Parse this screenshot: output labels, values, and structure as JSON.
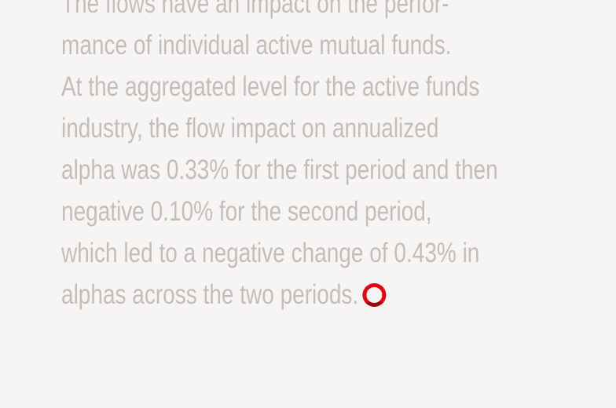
{
  "article": {
    "lines": [
      "The flows have an impact on the perfor-",
      "mance of individual active mutual funds.",
      "At the aggregated level for the active funds",
      "industry, the flow impact on annualized",
      "alpha was 0.33% for the first period and then",
      "negative 0.10% for the second period,",
      "which led to a negative change of 0.43% in",
      "alphas across the two periods."
    ],
    "end_mark_icon": "red-circle-end-mark-icon",
    "text_color": "#c3beb8",
    "accent_color": "#e3000f"
  }
}
